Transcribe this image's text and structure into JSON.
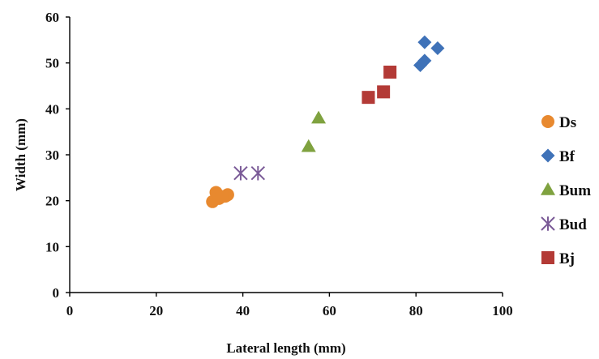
{
  "chart_data": {
    "type": "scatter",
    "xlabel": "Lateral length (mm)",
    "ylabel": "Width (mm)",
    "xlim": [
      0,
      100
    ],
    "ylim": [
      0,
      60
    ],
    "xticks": [
      "0",
      "20",
      "40",
      "60",
      "80",
      "100"
    ],
    "yticks": [
      "0",
      "10",
      "20",
      "30",
      "40",
      "50",
      "60"
    ],
    "grid": false,
    "legend_position": "right",
    "series": [
      {
        "name": "Ds",
        "marker": "circle",
        "color": "#E8892F",
        "points": [
          [
            33,
            19.8
          ],
          [
            33.8,
            21.8
          ],
          [
            34.5,
            20.5
          ],
          [
            36,
            21
          ],
          [
            36.5,
            21.3
          ],
          [
            35.2,
            20.9
          ]
        ]
      },
      {
        "name": "Bf",
        "marker": "diamond",
        "color": "#3F72B8",
        "points": [
          [
            82,
            54.5
          ],
          [
            85,
            53.2
          ],
          [
            81,
            49.5
          ],
          [
            82,
            50.5
          ]
        ]
      },
      {
        "name": "Bum",
        "marker": "triangle",
        "color": "#7FA23F",
        "points": [
          [
            57.5,
            38
          ],
          [
            55.2,
            31.8
          ]
        ]
      },
      {
        "name": "Bud",
        "marker": "asterisk",
        "color": "#7A5A97",
        "points": [
          [
            39.5,
            26
          ],
          [
            43.5,
            26
          ]
        ]
      },
      {
        "name": "Bj",
        "marker": "square",
        "color": "#B33A36",
        "points": [
          [
            69,
            42.5
          ],
          [
            72.5,
            43.7
          ],
          [
            74,
            48
          ]
        ]
      }
    ]
  }
}
